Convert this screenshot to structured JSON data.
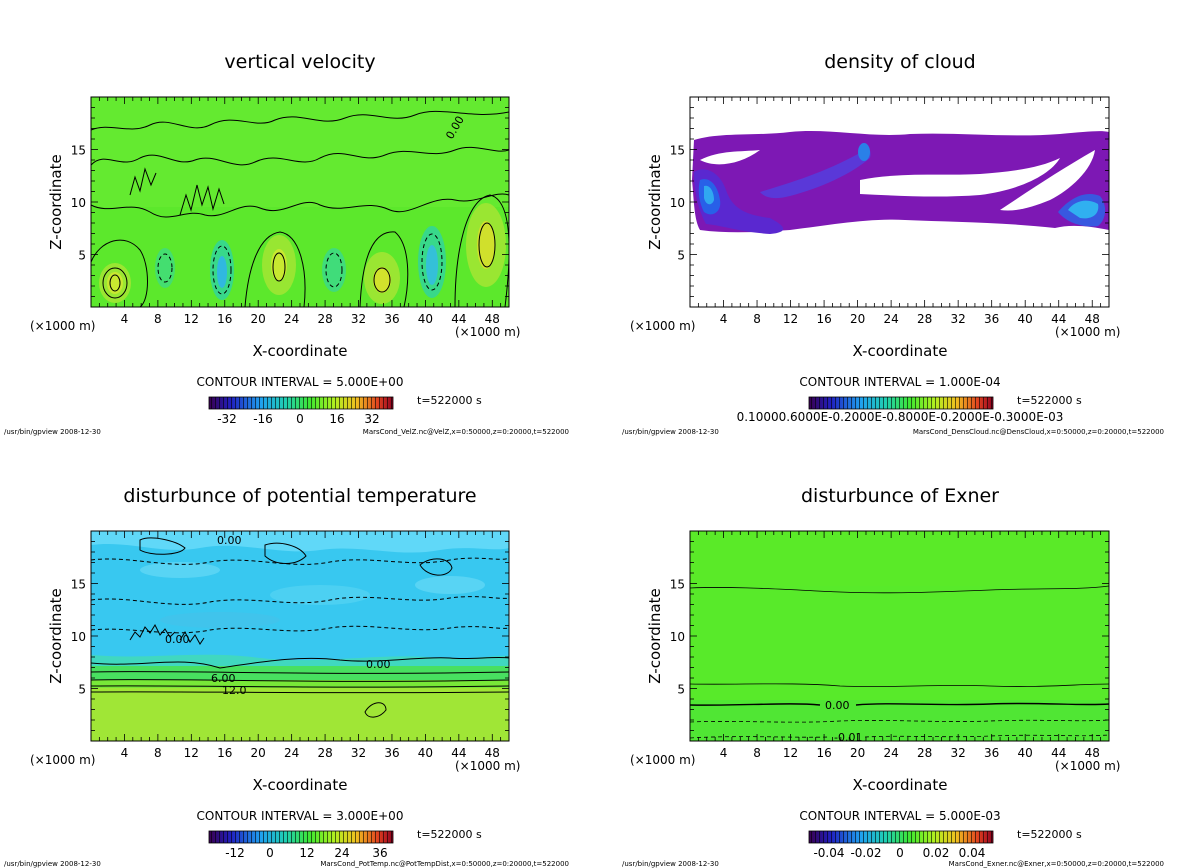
{
  "footer_path": "/usr/bin/gpview  2008-12-30",
  "chart_data": [
    {
      "type": "heatmap",
      "title": "vertical velocity",
      "xlabel": "X-coordinate",
      "ylabel": "Z-coordinate",
      "x_unit_left": "(×1000 m)",
      "x_unit_right": "(×1000 m)",
      "x_ticks": [
        "4",
        "8",
        "12",
        "16",
        "20",
        "24",
        "28",
        "32",
        "36",
        "40",
        "44",
        "48"
      ],
      "y_ticks": [
        "5",
        "10",
        "15"
      ],
      "xlim": [
        0,
        50
      ],
      "ylim": [
        0,
        20
      ],
      "contour_interval": "CONTOUR INTERVAL = 5.000E+00",
      "time": "t=522000 s",
      "colorbar_ticks": [
        "-32",
        "-16",
        "0",
        "16",
        "32"
      ],
      "contour_labels": [
        "0.00"
      ],
      "source": "MarsCond_VelZ.nc@VelZ,x=0:50000,z=0:20000,t=522000",
      "background": "#59e82a"
    },
    {
      "type": "heatmap",
      "title": "density of cloud",
      "xlabel": "X-coordinate",
      "ylabel": "Z-coordinate",
      "x_unit_left": "(×1000 m)",
      "x_unit_right": "(×1000 m)",
      "x_ticks": [
        "4",
        "8",
        "12",
        "16",
        "20",
        "24",
        "28",
        "32",
        "36",
        "40",
        "44",
        "48"
      ],
      "y_ticks": [
        "5",
        "10",
        "15"
      ],
      "xlim": [
        0,
        50
      ],
      "ylim": [
        0,
        20
      ],
      "contour_interval": "CONTOUR INTERVAL = 1.000E-04",
      "time": "t=522000 s",
      "colorbar_ticks": [
        "0.1000E-03"
      ],
      "colorbar_overlap": "0.10000.6000E-0.2000E-0.8000E-0.2000E-0.3000E-03",
      "contour_labels": [],
      "source": "MarsCond_DensCloud.nc@DensCloud,x=0:50000,z=0:20000,t=522000",
      "background": "#ffffff"
    },
    {
      "type": "heatmap",
      "title": "disturbunce of potential temperature",
      "xlabel": "X-coordinate",
      "ylabel": "Z-coordinate",
      "x_unit_left": "(×1000 m)",
      "x_unit_right": "(×1000 m)",
      "x_ticks": [
        "4",
        "8",
        "12",
        "16",
        "20",
        "24",
        "28",
        "32",
        "36",
        "40",
        "44",
        "48"
      ],
      "y_ticks": [
        "5",
        "10",
        "15"
      ],
      "xlim": [
        0,
        50
      ],
      "ylim": [
        0,
        20
      ],
      "contour_interval": "CONTOUR INTERVAL = 3.000E+00",
      "time": "t=522000 s",
      "colorbar_ticks": [
        "-12",
        "0",
        "12",
        "24",
        "36"
      ],
      "contour_labels": [
        "0.00",
        "0.00",
        "0.00",
        "6.00",
        "12.0"
      ],
      "source": "MarsCond_PotTemp.nc@PotTempDist,x=0:50000,z=0:20000,t=522000",
      "background": "#33c8f0"
    },
    {
      "type": "heatmap",
      "title": "disturbunce of Exner",
      "xlabel": "X-coordinate",
      "ylabel": "Z-coordinate",
      "x_unit_left": "(×1000 m)",
      "x_unit_right": "(×1000 m)",
      "x_ticks": [
        "4",
        "8",
        "12",
        "16",
        "20",
        "24",
        "28",
        "32",
        "36",
        "40",
        "44",
        "48"
      ],
      "y_ticks": [
        "5",
        "10",
        "15"
      ],
      "xlim": [
        0,
        50
      ],
      "ylim": [
        0,
        20
      ],
      "contour_interval": "CONTOUR INTERVAL = 5.000E-03",
      "time": "t=522000 s",
      "colorbar_ticks": [
        "-0.04",
        "-0.02",
        "0",
        "0.02",
        "0.04"
      ],
      "contour_labels": [
        "0.00",
        "-0.01"
      ],
      "source": "MarsCond_Exner.nc@Exner,x=0:50000,z=0:20000,t=522000",
      "background": "#56e82a"
    }
  ]
}
